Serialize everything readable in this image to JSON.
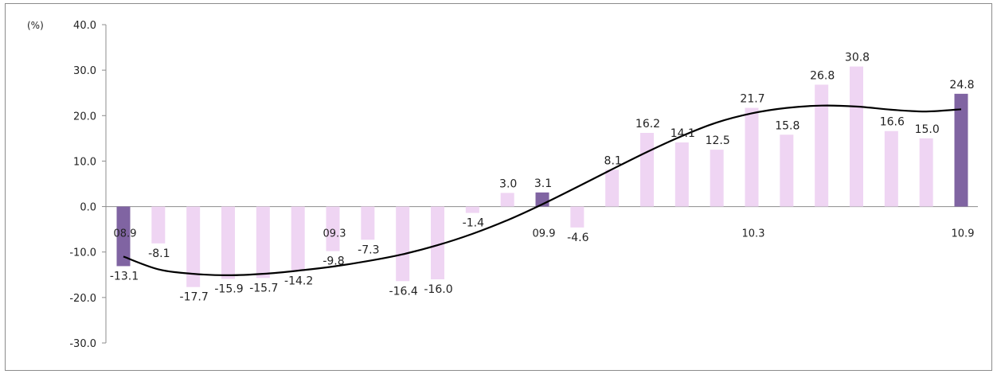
{
  "chart_data": {
    "type": "bar",
    "unit_label": "(%)",
    "ylim": [
      -30,
      40
    ],
    "yticks": [
      "40.0",
      "30.0",
      "20.0",
      "10.0",
      "0.0",
      "-10.0",
      "-20.0",
      "-30.0"
    ],
    "categories": [
      "08.9",
      "",
      "",
      "",
      "",
      "",
      "09.3",
      "",
      "",
      "",
      "",
      "",
      "09.9",
      "",
      "",
      "",
      "",
      "",
      "10.3",
      "",
      "",
      "",
      "",
      "",
      "10.9"
    ],
    "values": [
      -13.1,
      -8.1,
      -17.7,
      -15.9,
      -15.7,
      -14.2,
      -9.8,
      -7.3,
      -16.4,
      -16.0,
      -1.4,
      3.0,
      3.1,
      -4.6,
      8.1,
      16.2,
      14.1,
      12.5,
      21.7,
      15.8,
      26.8,
      30.8,
      16.6,
      15.0,
      24.8
    ],
    "value_labels": [
      "-13.1",
      "-8.1",
      "-17.7",
      "-15.9",
      "-15.7",
      "-14.2",
      "-9.8",
      "-7.3",
      "-16.4",
      "-16.0",
      "-1.4",
      "3.0",
      "3.1",
      "-4.6",
      "8.1",
      "16.2",
      "14.1",
      "12.5",
      "21.7",
      "15.8",
      "26.8",
      "30.8",
      "16.6",
      "15.0",
      "24.8"
    ],
    "highlighted_indices": [
      0,
      12,
      24
    ],
    "trend_line": {
      "x_index": [
        0,
        1,
        2,
        3,
        4,
        5,
        6,
        7,
        8,
        9,
        10,
        11,
        12,
        13,
        14,
        15,
        16,
        17,
        18,
        19,
        20,
        21,
        22,
        23,
        24
      ],
      "y": [
        -11.0,
        -13.8,
        -14.8,
        -15.1,
        -14.8,
        -14.1,
        -13.2,
        -12.0,
        -10.5,
        -8.5,
        -6.0,
        -3.0,
        0.5,
        4.3,
        8.2,
        12.0,
        15.5,
        18.5,
        20.5,
        21.7,
        22.2,
        22.0,
        21.3,
        20.9,
        21.4
      ]
    },
    "grid": false,
    "legend": "none",
    "colors": {
      "bar": "#efd5f3",
      "bar_highlight": "#8064a2",
      "trend": "#000000",
      "axis": "#8c8c8c"
    }
  }
}
